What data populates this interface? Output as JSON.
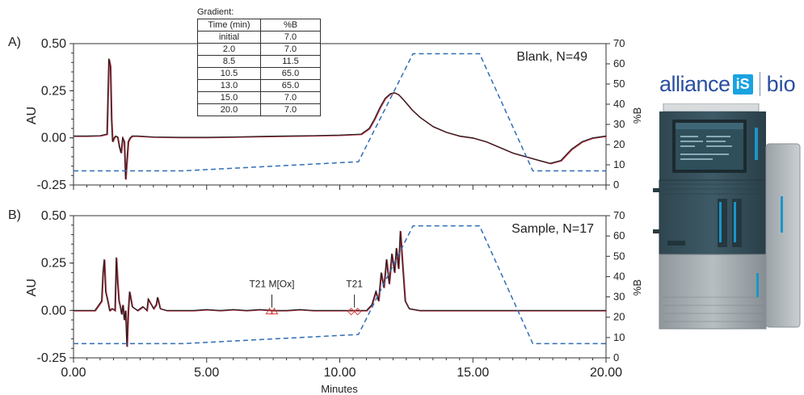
{
  "panels": [
    {
      "letter": "A)",
      "title": "Blank, N=49",
      "ylabel": "AU",
      "y2label": "%B",
      "yticks": [
        "0.50",
        "0.25",
        "0.00",
        "-0.25"
      ],
      "y2ticks": [
        "70",
        "60",
        "50",
        "40",
        "30",
        "20",
        "10",
        "0"
      ]
    },
    {
      "letter": "B)",
      "title": "Sample, N=17",
      "ylabel": "AU",
      "y2label": "%B",
      "yticks": [
        "0.50",
        "0.25",
        "0.00",
        "-0.25"
      ],
      "y2ticks": [
        "70",
        "60",
        "50",
        "40",
        "30",
        "20",
        "10",
        "0"
      ],
      "annotations": [
        {
          "label": "T21 M[Ox]",
          "x": 7.45,
          "y": -0.01,
          "marker": "triangle"
        },
        {
          "label": "T21",
          "x": 10.55,
          "y": -0.01,
          "marker": "diamond"
        }
      ]
    }
  ],
  "xlabel": "Minutes",
  "xticks": [
    "0.00",
    "5.00",
    "10.00",
    "15.00",
    "20.00"
  ],
  "gradient_table": {
    "title": "Gradient:",
    "headers": [
      "Time (min)",
      "%B"
    ],
    "rows": [
      [
        "initial",
        "7.0"
      ],
      [
        "2.0",
        "7.0"
      ],
      [
        "8.5",
        "11.5"
      ],
      [
        "10.5",
        "65.0"
      ],
      [
        "13.0",
        "65.0"
      ],
      [
        "15.0",
        "7.0"
      ],
      [
        "20.0",
        "7.0"
      ]
    ]
  },
  "brand": {
    "name": "alliance",
    "badge": "iS",
    "suffix": "bio"
  },
  "colors": {
    "trace_dark": "#1a1a1a",
    "trace_red": "#c0394b",
    "gradient": "#2f6db5",
    "axis": "#333333",
    "annot_red": "#d63a3a"
  },
  "chart_data": [
    {
      "type": "line",
      "title": "Blank, N=49",
      "xlabel": "",
      "ylabel": "AU",
      "y2label": "%B",
      "xlim": [
        0,
        20
      ],
      "ylim": [
        -0.25,
        0.5
      ],
      "y2lim": [
        0,
        70
      ],
      "series": [
        {
          "axis": "left",
          "x": [
            0,
            0.5,
            1.0,
            1.25,
            1.32,
            1.38,
            1.42,
            1.46,
            1.52,
            1.58,
            1.65,
            1.72,
            1.78,
            1.84,
            1.9,
            1.95,
            2.0,
            2.05,
            2.12,
            2.2,
            2.4,
            3.0,
            4.0,
            5.0,
            6.0,
            7.0,
            8.0,
            9.0,
            10.0,
            10.8,
            11.1,
            11.3,
            11.5,
            11.7,
            11.9,
            12.05,
            12.2,
            12.4,
            12.7,
            13.0,
            13.5,
            14.0,
            14.5,
            15.0,
            15.5,
            16.0,
            16.5,
            17.0,
            17.5,
            17.9,
            18.3,
            18.7,
            19.1,
            19.5,
            20.0
          ],
          "y": [
            0.01,
            0.01,
            0.012,
            0.02,
            0.42,
            0.38,
            0.1,
            -0.02,
            0.0,
            0.01,
            0.005,
            -0.05,
            -0.08,
            0.0,
            -0.02,
            -0.22,
            -0.12,
            -0.02,
            0.0,
            0.01,
            0.01,
            0.005,
            0.003,
            0.003,
            0.005,
            0.008,
            0.01,
            0.012,
            0.015,
            0.02,
            0.05,
            0.1,
            0.16,
            0.21,
            0.235,
            0.24,
            0.23,
            0.2,
            0.15,
            0.11,
            0.06,
            0.03,
            0.01,
            0.0,
            -0.02,
            -0.05,
            -0.08,
            -0.1,
            -0.12,
            -0.135,
            -0.12,
            -0.06,
            -0.02,
            0.0,
            0.01
          ]
        },
        {
          "name": "%B",
          "axis": "right",
          "style": "dashed",
          "x": [
            0,
            2,
            8.5,
            10.5,
            13,
            15,
            20
          ],
          "y": [
            7,
            7,
            11.5,
            65,
            65,
            7,
            7
          ],
          "x_display": [
            0,
            4.1,
            10.7,
            12.75,
            15.25,
            17.25,
            20
          ]
        }
      ]
    },
    {
      "type": "line",
      "title": "Sample, N=17",
      "xlabel": "Minutes",
      "ylabel": "AU",
      "y2label": "%B",
      "xlim": [
        0,
        20
      ],
      "ylim": [
        -0.25,
        0.5
      ],
      "y2lim": [
        0,
        70
      ],
      "series": [
        {
          "axis": "left",
          "x": [
            0,
            0.8,
            1.05,
            1.1,
            1.15,
            1.2,
            1.28,
            1.35,
            1.45,
            1.55,
            1.6,
            1.65,
            1.7,
            1.75,
            1.8,
            1.85,
            1.9,
            1.95,
            2.0,
            2.05,
            2.1,
            2.2,
            2.4,
            2.6,
            2.75,
            2.8,
            3.0,
            3.1,
            3.15,
            3.25,
            3.5,
            4.0,
            4.5,
            5.0,
            5.5,
            6.0,
            6.5,
            7.0,
            7.5,
            8.0,
            8.5,
            9.0,
            9.5,
            10.0,
            10.5,
            11.0,
            11.2,
            11.35,
            11.45,
            11.55,
            11.65,
            11.75,
            11.85,
            11.95,
            12.05,
            12.12,
            12.2,
            12.27,
            12.35,
            12.45,
            12.6,
            13.0,
            14.0,
            15.0,
            16.0,
            17.0,
            18.0,
            19.0,
            20.0
          ],
          "y": [
            0.0,
            0.0,
            0.05,
            0.2,
            0.27,
            0.1,
            0.05,
            0.0,
            0.01,
            0.0,
            0.28,
            0.15,
            0.05,
            0.02,
            -0.02,
            0.03,
            -0.05,
            0.0,
            -0.19,
            0.0,
            0.1,
            0.02,
            0.0,
            0.02,
            0.0,
            0.06,
            0.01,
            0.03,
            0.07,
            0.01,
            0.0,
            0.0,
            0.0,
            0.005,
            0.0,
            0.005,
            0.0,
            0.005,
            0.0,
            0.0,
            0.005,
            0.0,
            0.0,
            0.0,
            0.0,
            0.0,
            0.03,
            0.1,
            0.05,
            0.2,
            0.12,
            0.27,
            0.14,
            0.3,
            0.2,
            0.33,
            0.22,
            0.42,
            0.25,
            0.05,
            0.01,
            0.0,
            0.0,
            0.0,
            0.0,
            0.0,
            0.0,
            0.0,
            0.0
          ]
        },
        {
          "name": "%B",
          "axis": "right",
          "style": "dashed",
          "x": [
            0,
            2,
            8.5,
            10.5,
            13,
            15,
            20
          ],
          "y": [
            7,
            7,
            11.5,
            65,
            65,
            7,
            7
          ],
          "x_display": [
            0,
            4.1,
            10.7,
            12.75,
            15.25,
            17.25,
            20
          ]
        }
      ]
    }
  ]
}
